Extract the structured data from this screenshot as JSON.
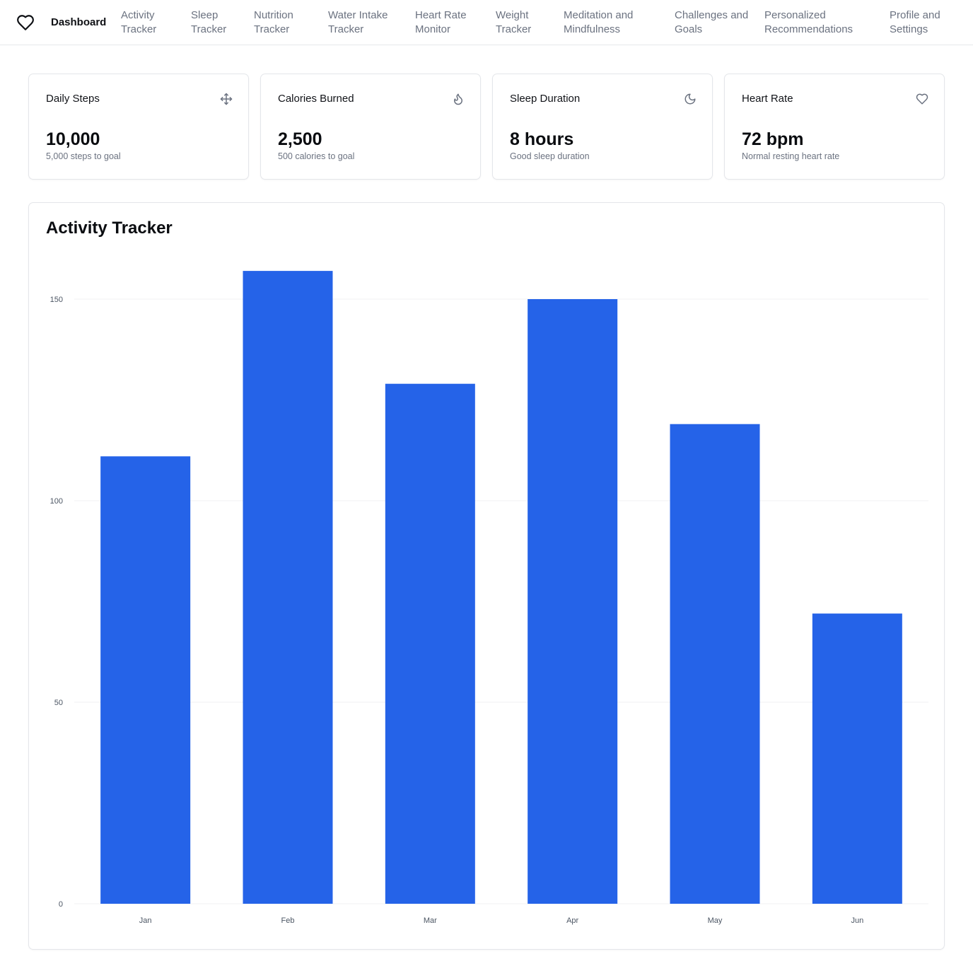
{
  "nav": {
    "items": [
      {
        "line1": "Dashboard",
        "line2": ""
      },
      {
        "line1": "Activity",
        "line2": "Tracker"
      },
      {
        "line1": "Sleep",
        "line2": "Tracker"
      },
      {
        "line1": "Nutrition",
        "line2": "Tracker"
      },
      {
        "line1": "Water Intake",
        "line2": "Tracker"
      },
      {
        "line1": "Heart Rate",
        "line2": "Monitor"
      },
      {
        "line1": "Weight",
        "line2": "Tracker"
      },
      {
        "line1": "Meditation and",
        "line2": "Mindfulness"
      },
      {
        "line1": "Challenges and",
        "line2": "Goals"
      },
      {
        "line1": "Personalized",
        "line2": "Recommendations"
      },
      {
        "line1": "Profile and",
        "line2": "Settings"
      }
    ]
  },
  "cards": [
    {
      "title": "Daily Steps",
      "value": "10,000",
      "note": "5,000 steps to goal",
      "icon": "move-icon"
    },
    {
      "title": "Calories Burned",
      "value": "2,500",
      "note": "500 calories to goal",
      "icon": "flame-icon"
    },
    {
      "title": "Sleep Duration",
      "value": "8 hours",
      "note": "Good sleep duration",
      "icon": "moon-icon"
    },
    {
      "title": "Heart Rate",
      "value": "72 bpm",
      "note": "Normal resting heart rate",
      "icon": "heart-icon"
    }
  ],
  "colors": {
    "bar": "#2563e8",
    "grid": "#f0f1f3",
    "tick": "#4b5563"
  },
  "chart_data": {
    "type": "bar",
    "title": "Activity Tracker",
    "categories": [
      "Jan",
      "Feb",
      "Mar",
      "Apr",
      "May",
      "Jun"
    ],
    "values": [
      111,
      157,
      129,
      150,
      119,
      72
    ],
    "yticks": [
      0,
      50,
      100,
      150
    ],
    "ylim": [
      0,
      150
    ],
    "grid": true
  }
}
